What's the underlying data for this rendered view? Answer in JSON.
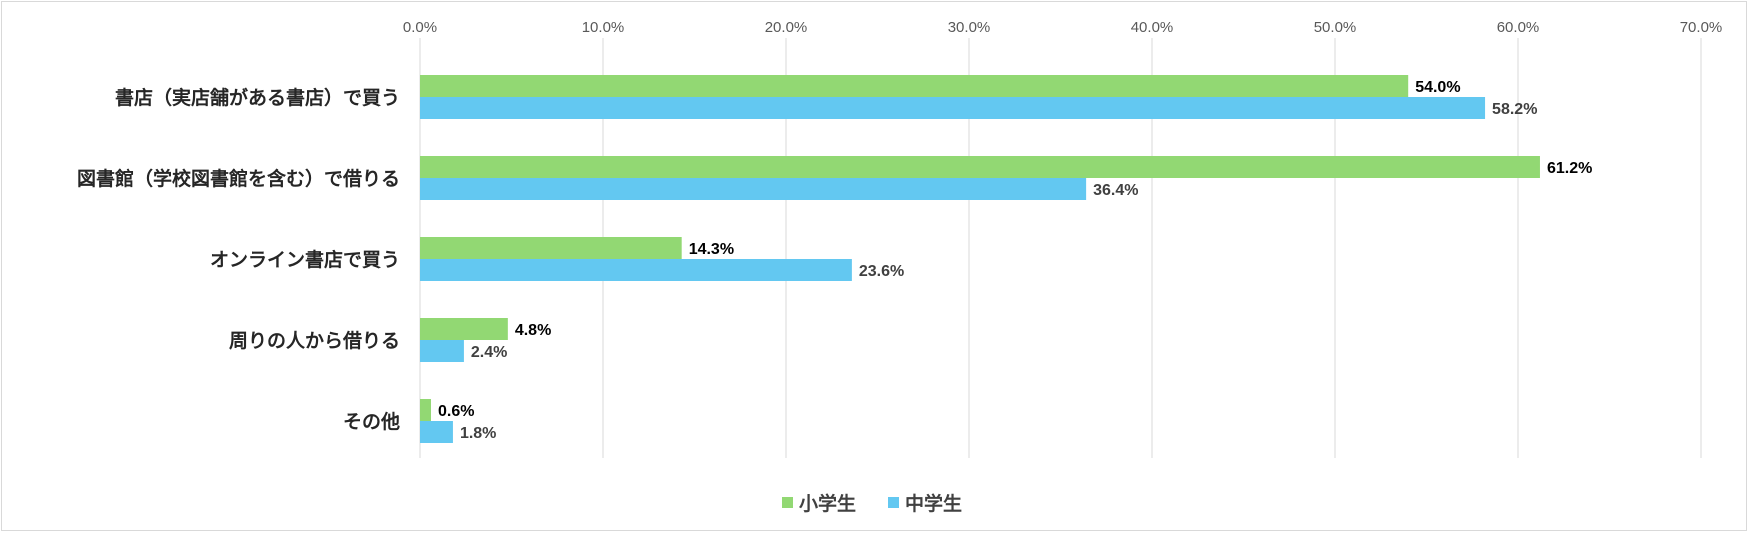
{
  "colors": {
    "series_a": "#92d873",
    "series_b": "#63c8f1",
    "grid": "#d9d9d9"
  },
  "chart_data": {
    "type": "bar",
    "orientation": "horizontal",
    "title": "",
    "xlabel": "",
    "ylabel": "",
    "xlim": [
      0,
      70
    ],
    "x_ticks": [
      "0.0%",
      "10.0%",
      "20.0%",
      "30.0%",
      "40.0%",
      "50.0%",
      "60.0%",
      "70.0%"
    ],
    "x_tick_values": [
      0,
      10,
      20,
      30,
      40,
      50,
      60,
      70
    ],
    "grid": true,
    "legend_position": "bottom",
    "categories": [
      "書店（実店舗がある書店）で買う",
      "図書館（学校図書館を含む）で借りる",
      "オンライン書店で買う",
      "周りの人から借りる",
      "その他"
    ],
    "series": [
      {
        "name": "小学生",
        "values": [
          54.0,
          61.2,
          14.3,
          4.8,
          0.6
        ],
        "labels": [
          "54.0%",
          "61.2%",
          "14.3%",
          "4.8%",
          "0.6%"
        ]
      },
      {
        "name": "中学生",
        "values": [
          58.2,
          36.4,
          23.6,
          2.4,
          1.8
        ],
        "labels": [
          "58.2%",
          "36.4%",
          "23.6%",
          "2.4%",
          "1.8%"
        ]
      }
    ]
  }
}
